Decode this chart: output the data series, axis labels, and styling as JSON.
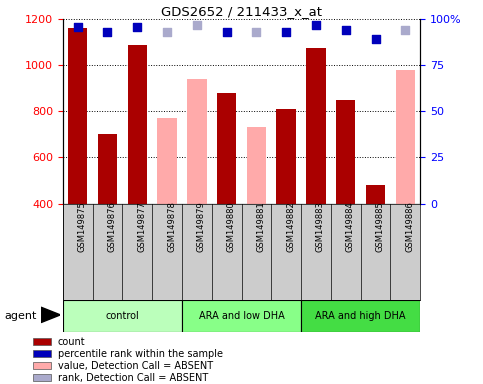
{
  "title": "GDS2652 / 211433_x_at",
  "samples": [
    "GSM149875",
    "GSM149876",
    "GSM149877",
    "GSM149878",
    "GSM149879",
    "GSM149880",
    "GSM149881",
    "GSM149882",
    "GSM149883",
    "GSM149884",
    "GSM149885",
    "GSM149886"
  ],
  "groups": [
    {
      "label": "control",
      "start": 0,
      "end": 4,
      "color": "#bbffbb"
    },
    {
      "label": "ARA and low DHA",
      "start": 4,
      "end": 8,
      "color": "#88ff88"
    },
    {
      "label": "ARA and high DHA",
      "start": 8,
      "end": 12,
      "color": "#44dd44"
    }
  ],
  "count_values": [
    1160,
    700,
    1090,
    null,
    null,
    880,
    null,
    810,
    1075,
    850,
    480,
    null
  ],
  "absent_values": [
    null,
    null,
    null,
    770,
    940,
    null,
    730,
    null,
    null,
    null,
    null,
    980
  ],
  "percentile_present": [
    96,
    93,
    96,
    null,
    null,
    93,
    null,
    93,
    97,
    94,
    89,
    null
  ],
  "percentile_absent": [
    null,
    null,
    null,
    93,
    97,
    null,
    93,
    null,
    null,
    null,
    null,
    94
  ],
  "ylim_left": [
    400,
    1200
  ],
  "ylim_right": [
    0,
    100
  ],
  "yticks_left": [
    400,
    600,
    800,
    1000,
    1200
  ],
  "yticks_right": [
    0,
    25,
    50,
    75,
    100
  ],
  "count_color": "#aa0000",
  "absent_bar_color": "#ffaaaa",
  "percentile_present_color": "#0000bb",
  "percentile_absent_color": "#aaaacc",
  "bar_width": 0.65,
  "legend_items": [
    {
      "label": "count",
      "color": "#aa0000"
    },
    {
      "label": "percentile rank within the sample",
      "color": "#0000bb"
    },
    {
      "label": "value, Detection Call = ABSENT",
      "color": "#ffaaaa"
    },
    {
      "label": "rank, Detection Call = ABSENT",
      "color": "#aaaacc"
    }
  ]
}
